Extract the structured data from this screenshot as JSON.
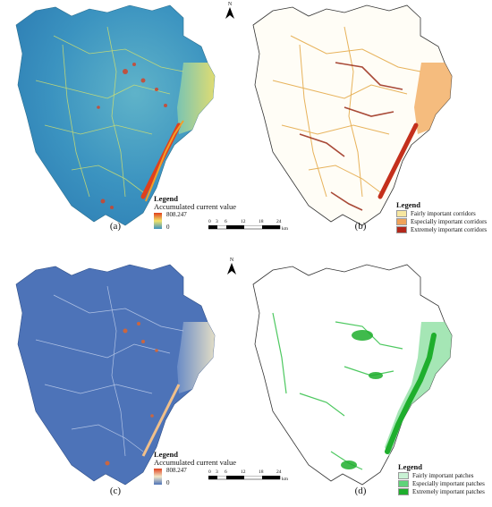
{
  "panels": [
    {
      "id": "a",
      "label": "(a)",
      "style": "current-blue"
    },
    {
      "id": "b",
      "label": "(b)",
      "style": "corridors"
    },
    {
      "id": "c",
      "label": "(c)",
      "style": "current-dark"
    },
    {
      "id": "d",
      "label": "(d)",
      "style": "patches"
    }
  ],
  "legend_a": {
    "title": "Legend",
    "caption": "Accumulated current value",
    "max": "808.247",
    "min": "0"
  },
  "legend_c": {
    "title": "Legend",
    "caption": "Accumulated current value",
    "max": "808.247",
    "min": "0"
  },
  "legend_b": {
    "title": "Legend",
    "items": [
      {
        "label": "Fairly important corridors",
        "color": "#f7e7a0"
      },
      {
        "label": "Especially important corridors",
        "color": "#f0a35a"
      },
      {
        "label": "Extremely important corridors",
        "color": "#b3271b"
      }
    ]
  },
  "legend_d": {
    "title": "Legend",
    "items": [
      {
        "label": "Fairly important patches",
        "color": "#c9f2d4"
      },
      {
        "label": "Especially important patches",
        "color": "#5fd37a"
      },
      {
        "label": "Extremely important patches",
        "color": "#1fae2d"
      }
    ]
  },
  "scalebar": {
    "ticks": [
      "0",
      "3",
      "6",
      "12",
      "18",
      "24"
    ],
    "unit": "km"
  },
  "north": {
    "label": "N"
  },
  "colors": {
    "outline": "#333333",
    "current_bg": "#3f96c4",
    "current_dark": "#4a72b8",
    "hot": "#e0401c"
  }
}
